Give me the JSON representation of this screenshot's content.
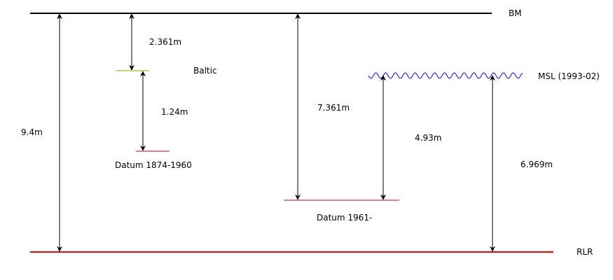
{
  "colors": {
    "bm_line": "#000000",
    "rlr_line": "#ff0000",
    "baltic_line": "#99aa00",
    "datum_line": "#cc0000",
    "msl_wave": "#0000ff",
    "arrow": "#000000"
  },
  "levels": {
    "bm": "BM",
    "baltic": "Baltic",
    "msl": "MSL (1993-02)",
    "datum_1874": "Datum 1874-1960",
    "datum_1961": "Datum 1961-",
    "rlr": "RLR"
  },
  "measurements": {
    "bm_to_rlr": "9.4m",
    "bm_to_baltic": "2.361m",
    "baltic_to_datum_1874": "1.24m",
    "bm_to_datum_1961": "7.361m",
    "msl_to_datum_1961": "4.93m",
    "msl_to_rlr": "6.969m"
  }
}
